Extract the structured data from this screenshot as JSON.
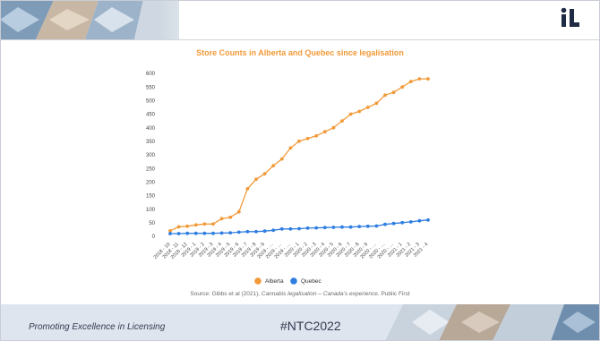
{
  "slide": {
    "footer_left": "Promoting Excellence in Licensing",
    "footer_center": "#NTC2022",
    "source_prefix": "Source: Gibbs et al (2021), ",
    "source_title": "Cannabis legalisation – Canada’s experience",
    "source_suffix": ". Public First",
    "logo_icon": "il-logo-icon"
  },
  "colors": {
    "alberta": "#f29a39",
    "quebec": "#2f7de1",
    "title": "#f29a39",
    "footer_band": "#dfe5ef"
  },
  "chart_data": {
    "type": "line",
    "title": "Store Counts in Alberta and Quebec since legalisation",
    "xlabel": "",
    "ylabel": "",
    "ylim": [
      0,
      600
    ],
    "yticks": [
      0,
      50,
      100,
      150,
      200,
      250,
      300,
      350,
      400,
      450,
      500,
      550,
      600
    ],
    "grid": false,
    "legend_position": "bottom",
    "categories": [
      "2018 - 10",
      "2018 - 11",
      "2018 - 12",
      "2019 - 1",
      "2019 - 2",
      "2019 - 3",
      "2019 - 4",
      "2019 - 5",
      "2019 - 6",
      "2019 - 7",
      "2019 - 8",
      "2019 - 9",
      "2019 - …",
      "2019 - …",
      "2019 - …",
      "2020 - 1",
      "2020 - 2",
      "2020 - 3",
      "2020 - 4",
      "2020 - 5",
      "2020 - 6",
      "2020 - 7",
      "2020 - 8",
      "2020 - 9",
      "2020 - …",
      "2020 - …",
      "2020 - …",
      "2021 - 1",
      "2021 - 2",
      "2021 - 3",
      "2021 - 4"
    ],
    "series": [
      {
        "name": "Alberta",
        "values": [
          20,
          35,
          37,
          42,
          45,
          45,
          65,
          70,
          90,
          175,
          210,
          230,
          260,
          285,
          325,
          350,
          360,
          370,
          385,
          400,
          425,
          450,
          460,
          475,
          490,
          520,
          530,
          550,
          570,
          580,
          580
        ]
      },
      {
        "name": "Quebec",
        "values": [
          10,
          10,
          11,
          11,
          11,
          11,
          12,
          13,
          15,
          17,
          17,
          19,
          22,
          27,
          27,
          28,
          30,
          31,
          32,
          33,
          34,
          34,
          36,
          37,
          38,
          44,
          47,
          50,
          53,
          57,
          60
        ]
      }
    ]
  }
}
